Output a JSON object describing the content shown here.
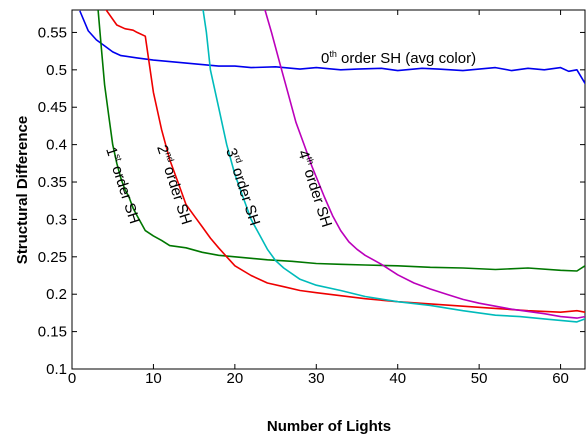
{
  "chart_data": {
    "type": "line",
    "title": "",
    "xlabel": "Number of Lights",
    "ylabel": "Structural Difference",
    "xlim": [
      0,
      63
    ],
    "ylim": [
      0.1,
      0.58
    ],
    "grid": false,
    "legend": "none",
    "x_ticks": [
      {
        "value": 0,
        "label": "0"
      },
      {
        "value": 10,
        "label": "10"
      },
      {
        "value": 20,
        "label": "20"
      },
      {
        "value": 30,
        "label": "30"
      },
      {
        "value": 40,
        "label": "40"
      },
      {
        "value": 50,
        "label": "50"
      },
      {
        "value": 60,
        "label": "60"
      }
    ],
    "y_ticks": [
      {
        "value": 0.1,
        "label": "0.1"
      },
      {
        "value": 0.15,
        "label": "0.15"
      },
      {
        "value": 0.2,
        "label": "0.2"
      },
      {
        "value": 0.25,
        "label": "0.25"
      },
      {
        "value": 0.3,
        "label": "0.3"
      },
      {
        "value": 0.35,
        "label": "0.35"
      },
      {
        "value": 0.4,
        "label": "0.4"
      },
      {
        "value": 0.45,
        "label": "0.45"
      },
      {
        "value": 0.5,
        "label": "0.5"
      },
      {
        "value": 0.55,
        "label": "0.55"
      }
    ],
    "series": [
      {
        "key": "sh0",
        "color": "#0000ee",
        "x": [
          1,
          2,
          3,
          4,
          5,
          6,
          8,
          10,
          12,
          15,
          18,
          20,
          22,
          25,
          28,
          30,
          33,
          35,
          38,
          40,
          43,
          45,
          48,
          50,
          52,
          54,
          56,
          58,
          60,
          61,
          62,
          63
        ],
        "y": [
          0.578,
          0.552,
          0.54,
          0.532,
          0.524,
          0.519,
          0.516,
          0.513,
          0.511,
          0.508,
          0.505,
          0.505,
          0.503,
          0.504,
          0.501,
          0.503,
          0.5,
          0.501,
          0.502,
          0.499,
          0.502,
          0.501,
          0.499,
          0.501,
          0.503,
          0.499,
          0.502,
          0.5,
          0.503,
          0.498,
          0.5,
          0.482
        ]
      },
      {
        "key": "sh1",
        "color": "#007700",
        "x": [
          3.2,
          3.6,
          4,
          4.5,
          5,
          5.5,
          6,
          6.5,
          7,
          7.5,
          8,
          9,
          10,
          11,
          12,
          14,
          16,
          18,
          20,
          22,
          24,
          27,
          30,
          33,
          36,
          40,
          44,
          48,
          52,
          56,
          60,
          62,
          63
        ],
        "y": [
          0.58,
          0.53,
          0.48,
          0.44,
          0.4,
          0.375,
          0.355,
          0.34,
          0.33,
          0.315,
          0.305,
          0.285,
          0.278,
          0.272,
          0.265,
          0.262,
          0.256,
          0.252,
          0.25,
          0.248,
          0.246,
          0.244,
          0.241,
          0.24,
          0.239,
          0.238,
          0.236,
          0.235,
          0.233,
          0.235,
          0.232,
          0.231,
          0.238
        ]
      },
      {
        "key": "sh2",
        "color": "#ee0000",
        "x": [
          4.2,
          5.5,
          6.5,
          7.5,
          8,
          9,
          10,
          11,
          12,
          13,
          14,
          15,
          16,
          17,
          18,
          19,
          20,
          22,
          24,
          26,
          28,
          30,
          33,
          36,
          40,
          44,
          48,
          52,
          56,
          60,
          62,
          63
        ],
        "y": [
          0.58,
          0.56,
          0.555,
          0.553,
          0.55,
          0.545,
          0.47,
          0.42,
          0.38,
          0.35,
          0.32,
          0.305,
          0.29,
          0.275,
          0.262,
          0.25,
          0.238,
          0.225,
          0.215,
          0.21,
          0.205,
          0.202,
          0.198,
          0.194,
          0.19,
          0.187,
          0.184,
          0.181,
          0.178,
          0.176,
          0.178,
          0.176
        ]
      },
      {
        "key": "sh3",
        "color": "#00bbbb",
        "x": [
          16.1,
          16.5,
          17,
          18,
          19,
          20,
          21,
          22,
          23,
          24,
          25,
          26,
          28,
          30,
          33,
          36,
          40,
          44,
          48,
          50,
          52,
          55,
          58,
          60,
          62,
          63
        ],
        "y": [
          0.58,
          0.55,
          0.5,
          0.45,
          0.4,
          0.36,
          0.33,
          0.3,
          0.28,
          0.26,
          0.245,
          0.235,
          0.22,
          0.212,
          0.205,
          0.197,
          0.19,
          0.185,
          0.178,
          0.175,
          0.172,
          0.17,
          0.167,
          0.165,
          0.163,
          0.167
        ]
      },
      {
        "key": "sh4",
        "color": "#bb00bb",
        "x": [
          23.7,
          24.5,
          25.5,
          26.5,
          27.5,
          28.5,
          29.5,
          31,
          32,
          33,
          34,
          35,
          36,
          37,
          38,
          40,
          42,
          44,
          46,
          48,
          50,
          52,
          54,
          56,
          58,
          60,
          62,
          63
        ],
        "y": [
          0.58,
          0.55,
          0.51,
          0.47,
          0.43,
          0.4,
          0.37,
          0.33,
          0.305,
          0.285,
          0.27,
          0.26,
          0.252,
          0.246,
          0.24,
          0.226,
          0.215,
          0.207,
          0.2,
          0.193,
          0.188,
          0.184,
          0.18,
          0.177,
          0.174,
          0.17,
          0.168,
          0.17
        ]
      }
    ],
    "annotations": [
      {
        "key": "sh0",
        "ordinal": "0",
        "sup": "th",
        "rest": " order SH (avg color)"
      },
      {
        "key": "sh1",
        "ordinal": "1",
        "sup": "st",
        "rest": " order SH"
      },
      {
        "key": "sh2",
        "ordinal": "2",
        "sup": "nd",
        "rest": " order SH"
      },
      {
        "key": "sh3",
        "ordinal": "3",
        "sup": "rd",
        "rest": " order SH"
      },
      {
        "key": "sh4",
        "ordinal": "4",
        "sup": "th",
        "rest": " order SH"
      }
    ]
  }
}
